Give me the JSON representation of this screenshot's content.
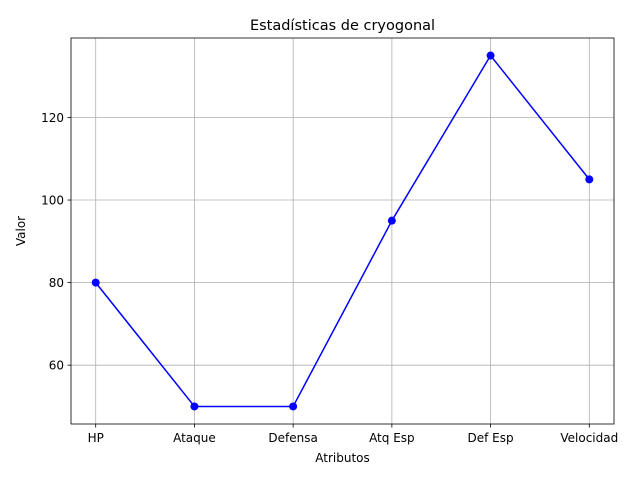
{
  "chart_data": {
    "type": "line",
    "title": "Estadísticas de cryogonal",
    "xlabel": "Atributos",
    "ylabel": "Valor",
    "categories": [
      "HP",
      "Ataque",
      "Defensa",
      "Atq Esp",
      "Def Esp",
      "Velocidad"
    ],
    "series": [
      {
        "values": [
          80,
          50,
          50,
          95,
          135,
          105
        ]
      }
    ],
    "ylim": [
      45.75,
      139.25
    ],
    "yticks": [
      60,
      80,
      100,
      120
    ],
    "grid": true,
    "line_color": "#0000ff",
    "marker": "circle"
  }
}
